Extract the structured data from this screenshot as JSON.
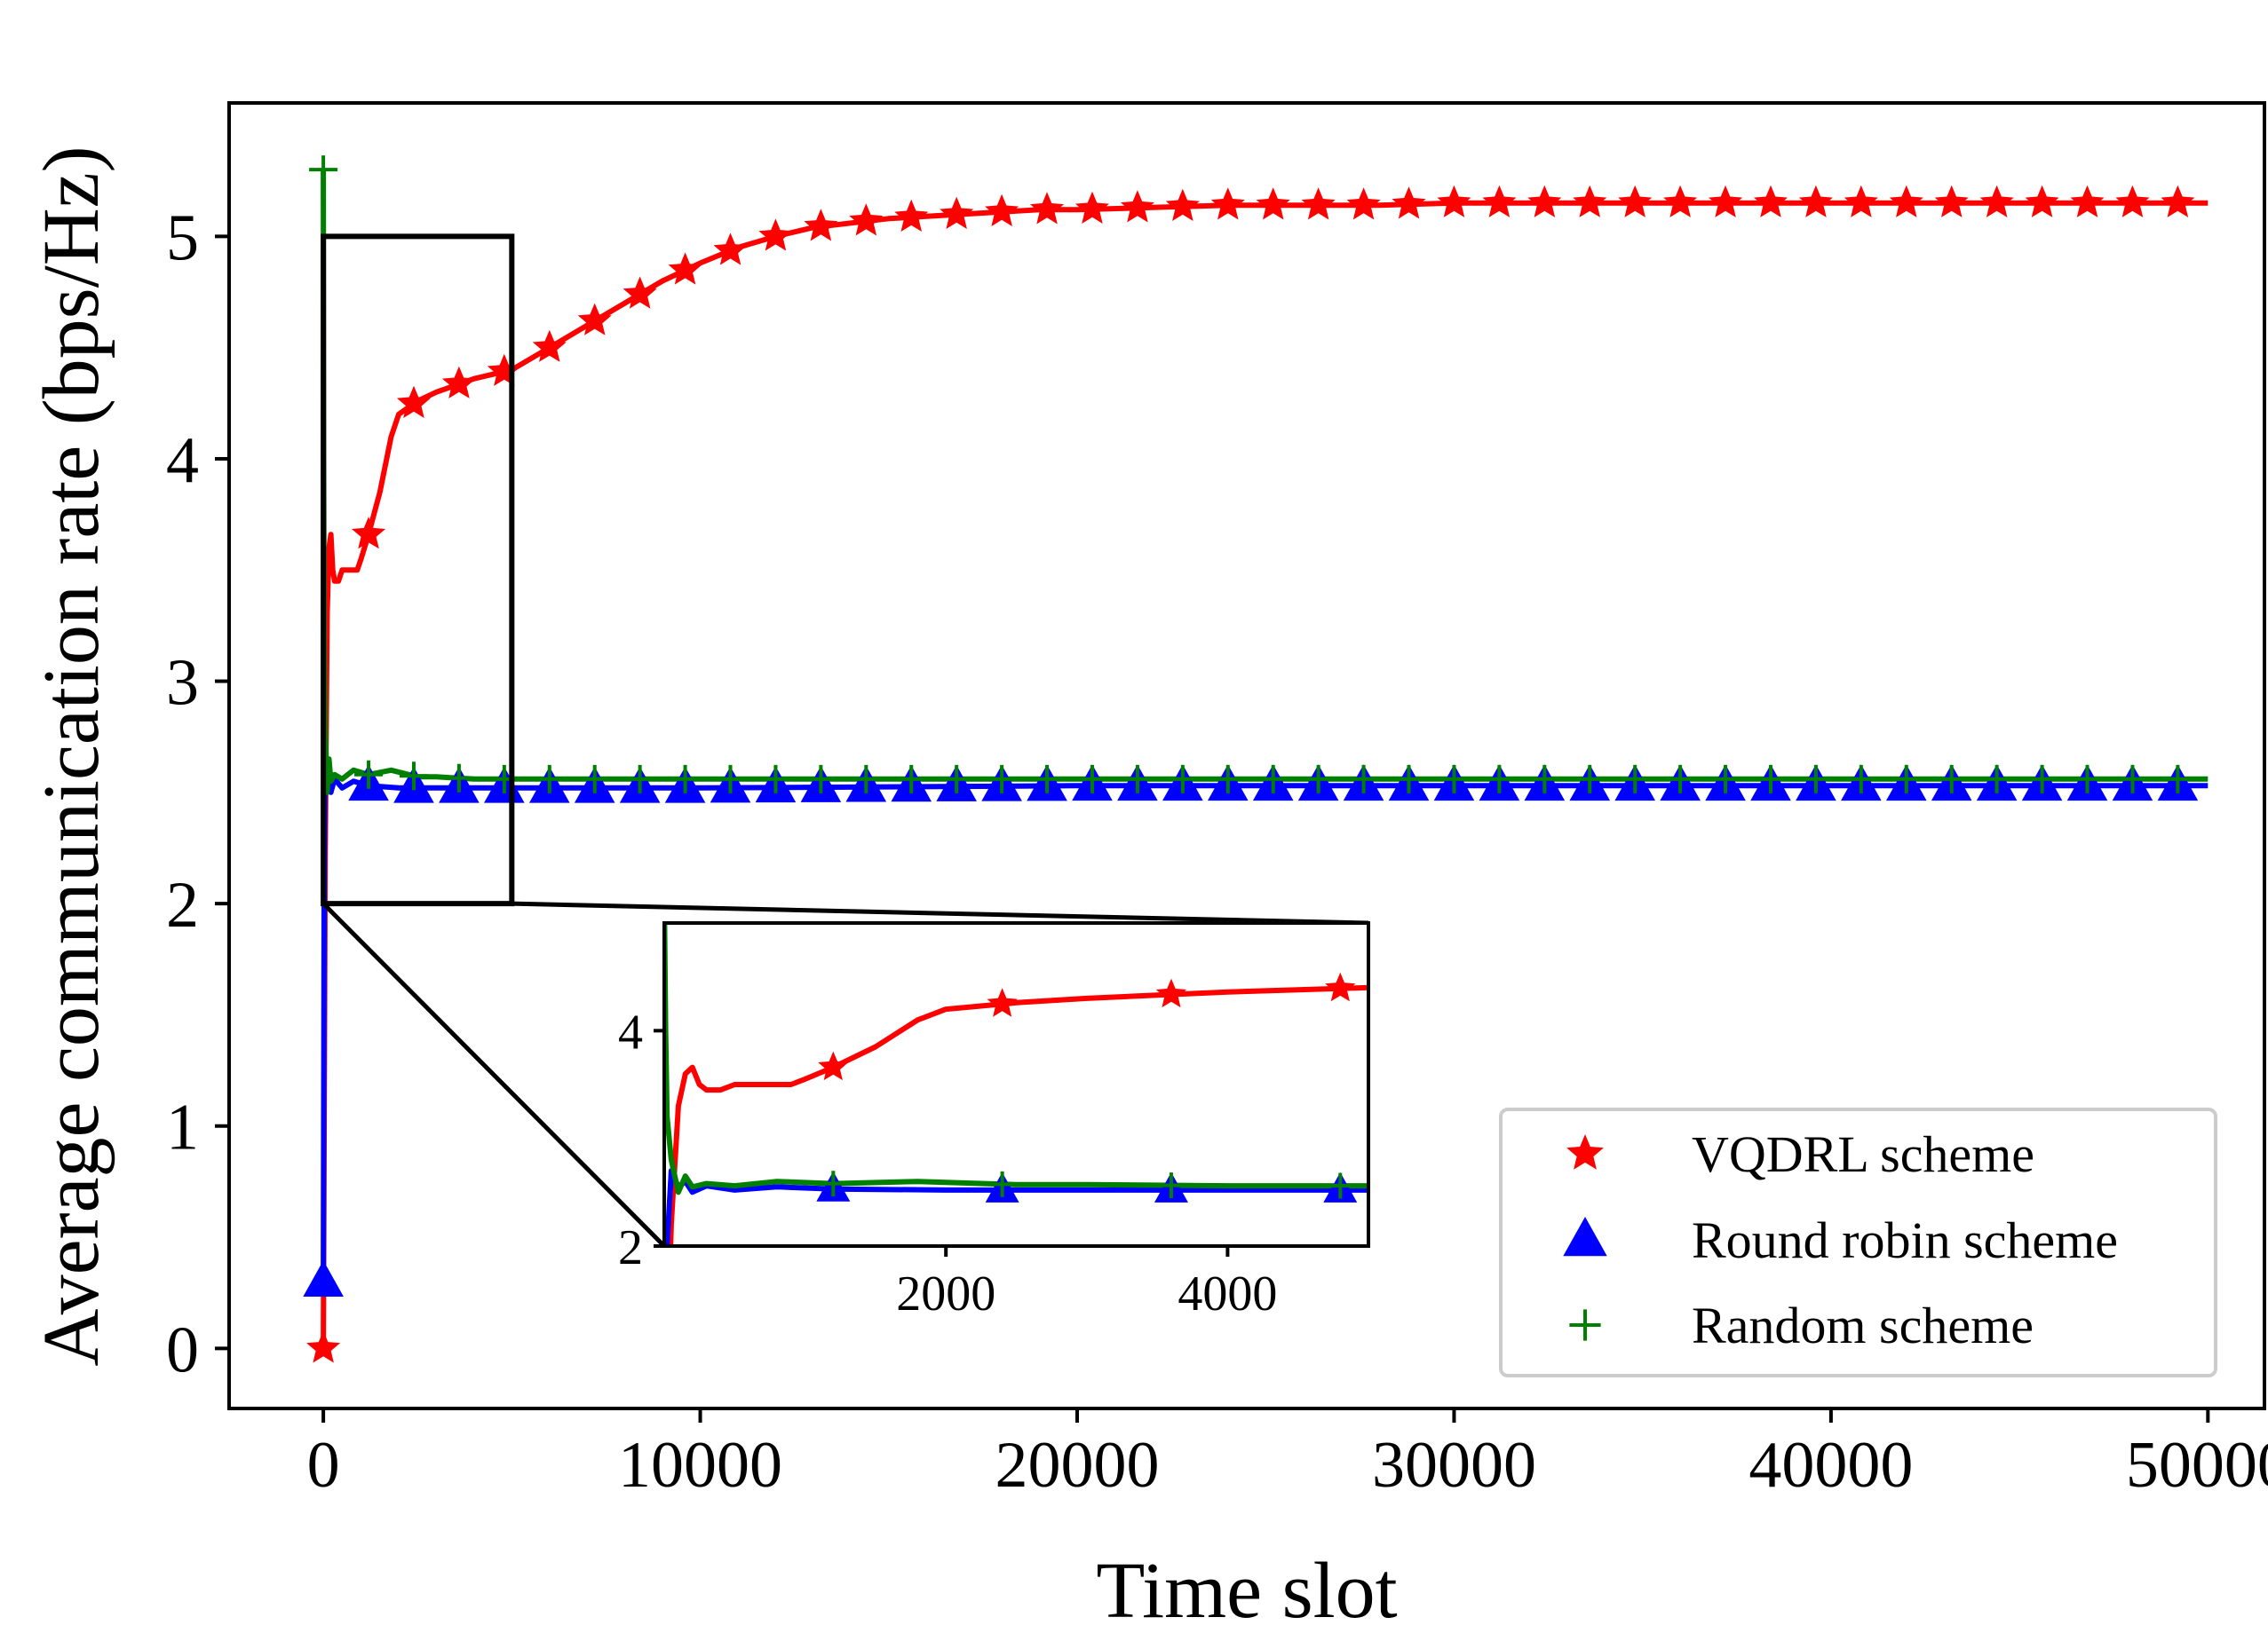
{
  "chart_data": {
    "type": "line",
    "title": "",
    "xlabel": "Time slot",
    "ylabel": "Average communication rate (bps/Hz)",
    "xlim": [
      -2500,
      51500
    ],
    "ylim": [
      -0.27,
      5.6
    ],
    "xticks": [
      0,
      10000,
      20000,
      30000,
      40000,
      50000
    ],
    "xtick_labels": [
      "0",
      "10000",
      "20000",
      "30000",
      "40000",
      "50000"
    ],
    "yticks": [
      0,
      1,
      2,
      3,
      4,
      5
    ],
    "ytick_labels": [
      "0",
      "1",
      "2",
      "3",
      "4",
      "5"
    ],
    "legend_position": "lower-right",
    "series": [
      {
        "name": "VQDRL scheme",
        "color": "#ff0000",
        "marker": "star",
        "x": [
          0,
          50,
          100,
          150,
          200,
          250,
          300,
          400,
          500,
          700,
          900,
          1000,
          1200,
          1500,
          1800,
          2000,
          2500,
          3000,
          3500,
          4000,
          4500,
          5000,
          6000,
          7000,
          8000,
          9000,
          10000,
          11000,
          12000,
          13000,
          14000,
          15000,
          16000,
          17000,
          18000,
          19000,
          20000,
          22000,
          24000,
          26000,
          28000,
          30000,
          35000,
          40000,
          45000,
          50000
        ],
        "y": [
          0,
          2.2,
          3.3,
          3.6,
          3.66,
          3.5,
          3.45,
          3.45,
          3.5,
          3.5,
          3.5,
          3.55,
          3.66,
          3.85,
          4.1,
          4.2,
          4.26,
          4.3,
          4.33,
          4.36,
          4.38,
          4.4,
          4.5,
          4.6,
          4.7,
          4.8,
          4.88,
          4.95,
          5.0,
          5.04,
          5.06,
          5.08,
          5.09,
          5.1,
          5.11,
          5.12,
          5.12,
          5.13,
          5.14,
          5.14,
          5.14,
          5.15,
          5.15,
          5.15,
          5.15,
          5.15
        ],
        "marker_x": [
          0,
          1200,
          2400,
          3600,
          4800,
          6000,
          7200,
          8400,
          9600,
          10800,
          12000,
          13200,
          14400,
          15600,
          16800,
          18000,
          19200,
          20400,
          21600,
          22800,
          24000,
          25200,
          26400,
          27600,
          28800,
          30000,
          31200,
          32400,
          33600,
          34800,
          36000,
          37200,
          38400,
          39600,
          40800,
          42000,
          43200,
          44400,
          45600,
          46800,
          48000,
          49200
        ]
      },
      {
        "name": "Round robin scheme",
        "color": "#0000ff",
        "marker": "triangle",
        "x": [
          0,
          20,
          50,
          100,
          150,
          200,
          300,
          500,
          800,
          1200,
          2000,
          3000,
          5000,
          10000,
          20000,
          30000,
          40000,
          50000
        ],
        "y": [
          0.3,
          2.0,
          2.7,
          2.55,
          2.6,
          2.5,
          2.56,
          2.52,
          2.55,
          2.53,
          2.52,
          2.52,
          2.52,
          2.52,
          2.53,
          2.53,
          2.53,
          2.53
        ],
        "marker_x": [
          0,
          1200,
          2400,
          3600,
          4800,
          6000,
          7200,
          8400,
          9600,
          10800,
          12000,
          13200,
          14400,
          15600,
          16800,
          18000,
          19200,
          20400,
          21600,
          22800,
          24000,
          25200,
          26400,
          27600,
          28800,
          30000,
          31200,
          32400,
          33600,
          34800,
          36000,
          37200,
          38400,
          39600,
          40800,
          42000,
          43200,
          44400,
          45600,
          46800,
          48000,
          49200
        ]
      },
      {
        "name": "Random scheme",
        "color": "#008000",
        "marker": "plus",
        "x": [
          0,
          10,
          20,
          50,
          100,
          150,
          200,
          300,
          500,
          800,
          1200,
          1800,
          2500,
          3000,
          4000,
          5000,
          10000,
          20000,
          30000,
          40000,
          50000
        ],
        "y": [
          5.3,
          4.0,
          3.2,
          2.8,
          2.5,
          2.65,
          2.55,
          2.58,
          2.56,
          2.6,
          2.58,
          2.6,
          2.57,
          2.57,
          2.56,
          2.56,
          2.56,
          2.56,
          2.56,
          2.56,
          2.56
        ],
        "marker_x": [
          0,
          1200,
          2400,
          3600,
          4800,
          6000,
          7200,
          8400,
          9600,
          10800,
          12000,
          13200,
          14400,
          15600,
          16800,
          18000,
          19200,
          20400,
          21600,
          22800,
          24000,
          25200,
          26400,
          27600,
          28800,
          30000,
          31200,
          32400,
          33600,
          34800,
          36000,
          37200,
          38400,
          39600,
          40800,
          42000,
          43200,
          44400,
          45600,
          46800,
          48000,
          49200
        ]
      }
    ],
    "zoom_region": {
      "xlim": [
        0,
        5000
      ],
      "ylim": [
        2,
        5
      ]
    },
    "inset": {
      "xlim": [
        0,
        5000
      ],
      "ylim": [
        2,
        5
      ],
      "xticks": [
        2000,
        4000
      ],
      "xtick_labels": [
        "2000",
        "4000"
      ],
      "yticks": [
        2,
        4
      ],
      "ytick_labels": [
        "2",
        "4"
      ],
      "marker_x": [
        1200,
        2400,
        3600,
        4800
      ]
    }
  }
}
